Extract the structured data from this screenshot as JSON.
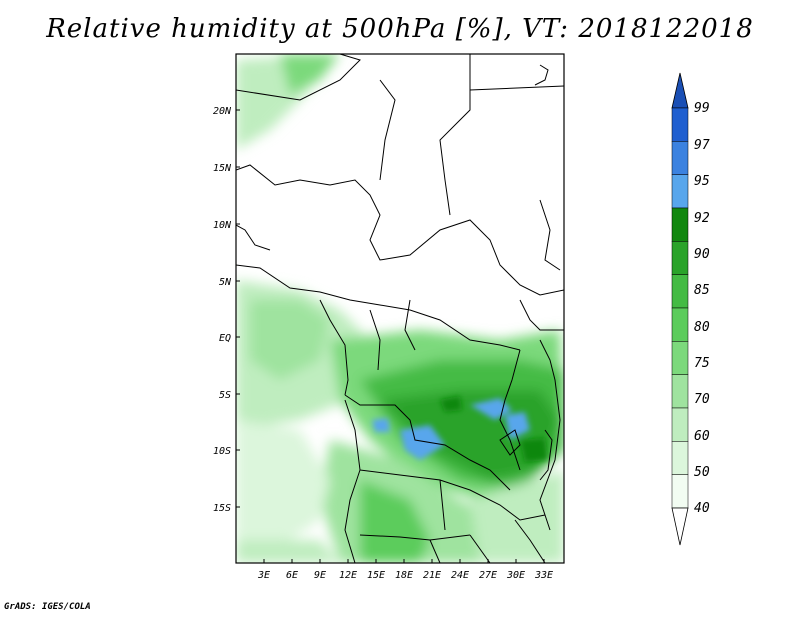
{
  "title": "Relative humidity at 500hPa [%], VT: 2018122018",
  "credit": "GrADS: IGES/COLA",
  "map": {
    "lat_ticks": [
      "20N",
      "15N",
      "10N",
      "5N",
      "EQ",
      "5S",
      "10S",
      "15S"
    ],
    "lon_ticks": [
      "3E",
      "6E",
      "9E",
      "12E",
      "15E",
      "18E",
      "21E",
      "24E",
      "27E",
      "30E",
      "33E"
    ]
  },
  "colorbar": {
    "levels": [
      "99",
      "97",
      "95",
      "92",
      "90",
      "85",
      "80",
      "75",
      "70",
      "60",
      "50",
      "40"
    ],
    "colors": [
      "#1f5fd0",
      "#3b82e0",
      "#58a6ec",
      "#11870f",
      "#2aa32a",
      "#44bb44",
      "#5ccc5c",
      "#7cd97c",
      "#9fe39f",
      "#bfedbf",
      "#dcf6dc",
      "#f2fcf2",
      "#ffffff"
    ],
    "top_color": "#1a4fb5",
    "bottom_color": "#ffffff"
  }
}
